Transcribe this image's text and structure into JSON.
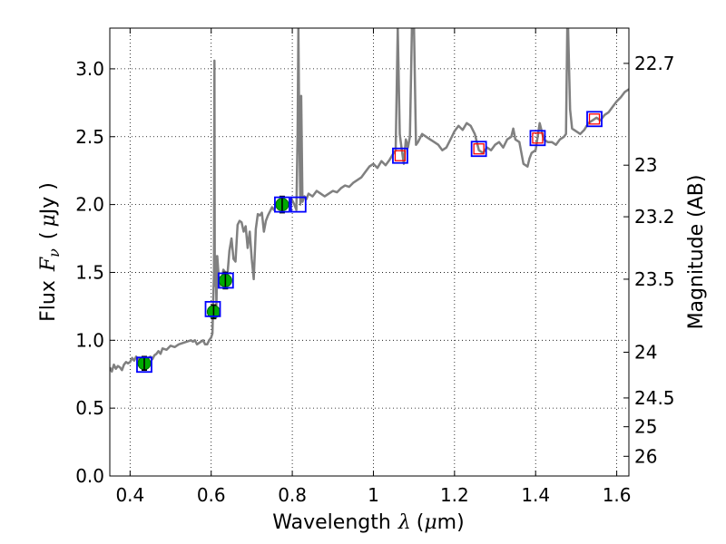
{
  "chart_data": {
    "type": "line",
    "xlabel": {
      "prefix": "Wavelength",
      "symbol": "λ",
      "unit_open": "(",
      "unit_mu": "μ",
      "unit_rest": "m)"
    },
    "ylabel": {
      "prefix": "Flux",
      "symbol": "F",
      "subscript": "ν",
      "unit_open": "(",
      "unit_mu": "μ",
      "unit_rest": "Jy )"
    },
    "y2label": "Magnitude (AB)",
    "xlim": [
      0.35,
      1.63
    ],
    "ylim": [
      0.0,
      3.3
    ],
    "grid": true,
    "x_ticks": [
      {
        "value": 0.4,
        "label": "0.4"
      },
      {
        "value": 0.6,
        "label": "0.6"
      },
      {
        "value": 0.8,
        "label": "0.8"
      },
      {
        "value": 1.0,
        "label": "1"
      },
      {
        "value": 1.2,
        "label": "1.2"
      },
      {
        "value": 1.4,
        "label": "1.4"
      },
      {
        "value": 1.6,
        "label": "1.6"
      }
    ],
    "y_ticks": [
      {
        "value": 0.0,
        "label": "0.0"
      },
      {
        "value": 0.5,
        "label": "0.5"
      },
      {
        "value": 1.0,
        "label": "1.0"
      },
      {
        "value": 1.5,
        "label": "1.5"
      },
      {
        "value": 2.0,
        "label": "2.0"
      },
      {
        "value": 2.5,
        "label": "2.5"
      },
      {
        "value": 3.0,
        "label": "3.0"
      }
    ],
    "y2_ticks": [
      {
        "flux": 3.04,
        "label": "22.7"
      },
      {
        "flux": 2.29,
        "label": "23"
      },
      {
        "flux": 1.91,
        "label": "23.2"
      },
      {
        "flux": 1.45,
        "label": "23.5"
      },
      {
        "flux": 0.912,
        "label": "24"
      },
      {
        "flux": 0.575,
        "label": "24.5"
      },
      {
        "flux": 0.363,
        "label": "25"
      },
      {
        "flux": 0.145,
        "label": "26"
      }
    ],
    "model_spectrum": {
      "color": "#808080",
      "points": [
        [
          0.35,
          0.8
        ],
        [
          0.355,
          0.77
        ],
        [
          0.36,
          0.82
        ],
        [
          0.365,
          0.79
        ],
        [
          0.37,
          0.81
        ],
        [
          0.375,
          0.8
        ],
        [
          0.38,
          0.78
        ],
        [
          0.385,
          0.82
        ],
        [
          0.39,
          0.84
        ],
        [
          0.395,
          0.83
        ],
        [
          0.4,
          0.84
        ],
        [
          0.405,
          0.87
        ],
        [
          0.41,
          0.85
        ],
        [
          0.415,
          0.88
        ],
        [
          0.42,
          0.86
        ],
        [
          0.425,
          0.87
        ],
        [
          0.43,
          0.85
        ],
        [
          0.44,
          0.86
        ],
        [
          0.445,
          0.87
        ],
        [
          0.45,
          0.88
        ],
        [
          0.455,
          0.86
        ],
        [
          0.46,
          0.89
        ],
        [
          0.465,
          0.9
        ],
        [
          0.47,
          0.92
        ],
        [
          0.475,
          0.9
        ],
        [
          0.48,
          0.94
        ],
        [
          0.49,
          0.93
        ],
        [
          0.5,
          0.96
        ],
        [
          0.51,
          0.95
        ],
        [
          0.52,
          0.97
        ],
        [
          0.53,
          0.98
        ],
        [
          0.54,
          0.99
        ],
        [
          0.55,
          1.0
        ],
        [
          0.555,
          0.99
        ],
        [
          0.56,
          1.0
        ],
        [
          0.565,
          0.97
        ],
        [
          0.57,
          0.98
        ],
        [
          0.575,
          0.99
        ],
        [
          0.58,
          1.0
        ],
        [
          0.585,
          0.97
        ],
        [
          0.59,
          0.97
        ],
        [
          0.595,
          1.0
        ],
        [
          0.6,
          1.02
        ],
        [
          0.603,
          1.05
        ],
        [
          0.605,
          1.3
        ],
        [
          0.607,
          1.5
        ],
        [
          0.608,
          3.06
        ],
        [
          0.609,
          1.4
        ],
        [
          0.611,
          1.62
        ],
        [
          0.613,
          1.25
        ],
        [
          0.615,
          1.62
        ],
        [
          0.62,
          1.4
        ],
        [
          0.625,
          1.42
        ],
        [
          0.63,
          1.52
        ],
        [
          0.635,
          1.5
        ],
        [
          0.64,
          1.48
        ],
        [
          0.645,
          1.66
        ],
        [
          0.65,
          1.75
        ],
        [
          0.655,
          1.6
        ],
        [
          0.66,
          1.58
        ],
        [
          0.665,
          1.85
        ],
        [
          0.67,
          1.88
        ],
        [
          0.675,
          1.87
        ],
        [
          0.68,
          1.8
        ],
        [
          0.685,
          1.84
        ],
        [
          0.69,
          1.68
        ],
        [
          0.695,
          1.8
        ],
        [
          0.7,
          1.6
        ],
        [
          0.705,
          1.45
        ],
        [
          0.71,
          1.82
        ],
        [
          0.715,
          1.93
        ],
        [
          0.72,
          1.92
        ],
        [
          0.725,
          1.94
        ],
        [
          0.73,
          1.8
        ],
        [
          0.735,
          1.88
        ],
        [
          0.74,
          1.92
        ],
        [
          0.75,
          1.98
        ],
        [
          0.755,
          1.96
        ],
        [
          0.76,
          2.0
        ],
        [
          0.77,
          1.98
        ],
        [
          0.775,
          2.0
        ],
        [
          0.78,
          2.02
        ],
        [
          0.79,
          2.0
        ],
        [
          0.8,
          2.03
        ],
        [
          0.805,
          2.0
        ],
        [
          0.81,
          1.96
        ],
        [
          0.813,
          2.5
        ],
        [
          0.815,
          3.3
        ],
        [
          0.817,
          2.6
        ],
        [
          0.82,
          2.0
        ],
        [
          0.822,
          2.8
        ],
        [
          0.825,
          2.02
        ],
        [
          0.83,
          2.06
        ],
        [
          0.835,
          2.04
        ],
        [
          0.84,
          2.08
        ],
        [
          0.85,
          2.06
        ],
        [
          0.86,
          2.1
        ],
        [
          0.87,
          2.08
        ],
        [
          0.88,
          2.06
        ],
        [
          0.89,
          2.08
        ],
        [
          0.9,
          2.1
        ],
        [
          0.91,
          2.09
        ],
        [
          0.92,
          2.12
        ],
        [
          0.93,
          2.14
        ],
        [
          0.94,
          2.13
        ],
        [
          0.95,
          2.16
        ],
        [
          0.96,
          2.18
        ],
        [
          0.97,
          2.2
        ],
        [
          0.98,
          2.24
        ],
        [
          0.99,
          2.28
        ],
        [
          1.0,
          2.3
        ],
        [
          1.01,
          2.27
        ],
        [
          1.02,
          2.32
        ],
        [
          1.03,
          2.29
        ],
        [
          1.04,
          2.33
        ],
        [
          1.05,
          2.38
        ],
        [
          1.055,
          2.4
        ],
        [
          1.06,
          3.3
        ],
        [
          1.065,
          2.52
        ],
        [
          1.07,
          2.4
        ],
        [
          1.075,
          2.3
        ],
        [
          1.08,
          2.48
        ],
        [
          1.085,
          2.42
        ],
        [
          1.09,
          2.5
        ],
        [
          1.095,
          3.3
        ],
        [
          1.1,
          3.3
        ],
        [
          1.105,
          2.44
        ],
        [
          1.11,
          2.46
        ],
        [
          1.12,
          2.52
        ],
        [
          1.13,
          2.5
        ],
        [
          1.14,
          2.48
        ],
        [
          1.15,
          2.46
        ],
        [
          1.16,
          2.44
        ],
        [
          1.17,
          2.4
        ],
        [
          1.18,
          2.42
        ],
        [
          1.19,
          2.48
        ],
        [
          1.2,
          2.54
        ],
        [
          1.21,
          2.58
        ],
        [
          1.22,
          2.55
        ],
        [
          1.23,
          2.6
        ],
        [
          1.24,
          2.58
        ],
        [
          1.25,
          2.52
        ],
        [
          1.26,
          2.4
        ],
        [
          1.27,
          2.38
        ],
        [
          1.28,
          2.42
        ],
        [
          1.29,
          2.4
        ],
        [
          1.3,
          2.44
        ],
        [
          1.31,
          2.46
        ],
        [
          1.32,
          2.42
        ],
        [
          1.33,
          2.48
        ],
        [
          1.34,
          2.5
        ],
        [
          1.345,
          2.56
        ],
        [
          1.35,
          2.48
        ],
        [
          1.36,
          2.46
        ],
        [
          1.37,
          2.3
        ],
        [
          1.38,
          2.28
        ],
        [
          1.385,
          2.34
        ],
        [
          1.39,
          2.38
        ],
        [
          1.4,
          2.4
        ],
        [
          1.41,
          2.6
        ],
        [
          1.42,
          2.48
        ],
        [
          1.43,
          2.46
        ],
        [
          1.44,
          2.46
        ],
        [
          1.45,
          2.44
        ],
        [
          1.46,
          2.48
        ],
        [
          1.47,
          2.5
        ],
        [
          1.475,
          2.52
        ],
        [
          1.478,
          3.3
        ],
        [
          1.48,
          3.3
        ],
        [
          1.485,
          2.7
        ],
        [
          1.49,
          2.56
        ],
        [
          1.5,
          2.54
        ],
        [
          1.51,
          2.52
        ],
        [
          1.52,
          2.55
        ],
        [
          1.53,
          2.6
        ],
        [
          1.54,
          2.62
        ],
        [
          1.55,
          2.64
        ],
        [
          1.56,
          2.62
        ],
        [
          1.57,
          2.66
        ],
        [
          1.58,
          2.68
        ],
        [
          1.59,
          2.72
        ],
        [
          1.6,
          2.76
        ],
        [
          1.61,
          2.79
        ],
        [
          1.62,
          2.83
        ],
        [
          1.63,
          2.85
        ]
      ]
    },
    "observed_points": {
      "color": "#00aa00",
      "points": [
        {
          "x": 0.435,
          "y": 0.83,
          "err": 0.05
        },
        {
          "x": 0.606,
          "y": 1.21,
          "err": 0.05
        },
        {
          "x": 0.635,
          "y": 1.44,
          "err": 0.06
        },
        {
          "x": 0.775,
          "y": 2.0,
          "err": 0.06
        }
      ]
    },
    "synthetic_photometry": {
      "color": "#0000ff",
      "points": [
        {
          "x": 0.435,
          "y": 0.82
        },
        {
          "x": 0.604,
          "y": 1.23
        },
        {
          "x": 0.636,
          "y": 1.44
        },
        {
          "x": 0.775,
          "y": 2.0
        },
        {
          "x": 0.815,
          "y": 2.0
        },
        {
          "x": 1.066,
          "y": 2.36
        },
        {
          "x": 1.26,
          "y": 2.41
        },
        {
          "x": 1.405,
          "y": 2.49
        },
        {
          "x": 1.545,
          "y": 2.63
        }
      ]
    },
    "model_band_points": {
      "color": "#ff0000",
      "points": [
        {
          "x": 1.066,
          "y": 2.36
        },
        {
          "x": 1.26,
          "y": 2.41
        },
        {
          "x": 1.405,
          "y": 2.49
        },
        {
          "x": 1.545,
          "y": 2.63
        }
      ]
    }
  }
}
